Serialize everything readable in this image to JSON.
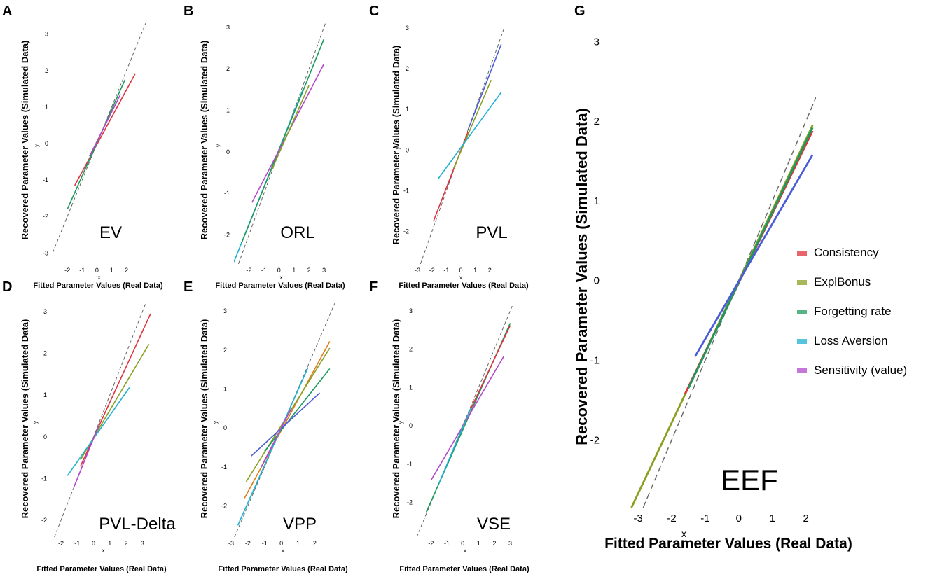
{
  "colors": {
    "Consistency": "#e0323c",
    "ExplBonus": "#88a020",
    "Forgetting rate": "#1c9a5e",
    "Loss Aversion": "#1fb0d2",
    "Sensitivity (value)": "#b248cc",
    "Extra blue": "#4a5cd8",
    "Extra orange": "#e07a18",
    "identity": "#666666"
  },
  "legend": {
    "items": [
      {
        "label": "Consistency",
        "color": "#e0323c"
      },
      {
        "label": "ExplBonus",
        "color": "#88a020"
      },
      {
        "label": "Forgetting rate",
        "color": "#1c9a5e"
      },
      {
        "label": "Loss Aversion",
        "color": "#1fb0d2"
      },
      {
        "label": "Sensitivity (value)",
        "color": "#b248cc"
      }
    ]
  },
  "chart_data": [
    {
      "panel": "A",
      "model": "EV",
      "type": "line",
      "xlabel": "Fitted Parameter Values (Real Data)",
      "ylabel": "Recovered Parameter Values (Simulated Data)",
      "xvar": "x",
      "yvar": "y",
      "xlim": [
        -3,
        3.3
      ],
      "ylim": [
        -3.3,
        3.3
      ],
      "xticks": [
        -2,
        -1,
        0,
        1,
        2
      ],
      "xtick_labels": [
        "-2",
        "-1",
        "0",
        "1",
        "2"
      ],
      "yticks": [
        -3,
        -2,
        -1,
        0,
        1,
        2,
        3
      ],
      "ytick_labels": [
        "-3",
        "-2",
        "-1",
        "0",
        "1",
        "2",
        "3"
      ],
      "identity_line": true,
      "series": [
        {
          "name": "Consistency",
          "color": "#e0323c",
          "x": [
            -1.5,
            2.6
          ],
          "y": [
            -1.15,
            1.92
          ]
        },
        {
          "name": "Forgetting rate",
          "color": "#1c9a5e",
          "x": [
            -2.0,
            1.9
          ],
          "y": [
            -1.8,
            1.75
          ]
        },
        {
          "name": "Sensitivity (value)",
          "color": "#b248cc",
          "x": [
            -0.5,
            1.6
          ],
          "y": [
            -0.35,
            1.35
          ]
        }
      ]
    },
    {
      "panel": "B",
      "model": "ORL",
      "type": "line",
      "xlabel": "Fitted Parameter Values (Real Data)",
      "ylabel": "Recovered Parameter Values (Simulated Data)",
      "xvar": "x",
      "yvar": "y",
      "xlim": [
        -3,
        3.3
      ],
      "ylim": [
        -2.7,
        3.1
      ],
      "xticks": [
        -2,
        -1,
        0,
        1,
        2,
        3
      ],
      "xtick_labels": [
        "-2",
        "-1",
        "0",
        "1",
        "2",
        "3"
      ],
      "yticks": [
        -2,
        -1,
        0,
        1,
        2,
        3
      ],
      "ytick_labels": [
        "-2",
        "-1",
        "0",
        "1",
        "2",
        "3"
      ],
      "identity_line": true,
      "series": [
        {
          "name": "Loss Aversion",
          "color": "#1fb0d2",
          "x": [
            -3.0,
            1.6
          ],
          "y": [
            -2.65,
            1.5
          ]
        },
        {
          "name": "Forgetting rate",
          "color": "#1c9a5e",
          "x": [
            -2.5,
            3.0
          ],
          "y": [
            -2.2,
            2.72
          ]
        },
        {
          "name": "Sensitivity (value)",
          "color": "#b248cc",
          "x": [
            -1.8,
            3.0
          ],
          "y": [
            -1.22,
            2.12
          ]
        },
        {
          "name": "ExplBonus",
          "color": "#88a020",
          "x": [
            -0.5,
            2.0
          ],
          "y": [
            -0.45,
            1.6
          ]
        }
      ]
    },
    {
      "panel": "C",
      "model": "PVL",
      "type": "line",
      "xlabel": "Fitted Parameter Values (Real Data)",
      "ylabel": "Recovered Parameter Values (Simulated Data)",
      "xvar": "x",
      "yvar": "y",
      "xlim": [
        -3.3,
        3.3
      ],
      "ylim": [
        -2.8,
        3.0
      ],
      "xticks": [
        -3,
        -2,
        -1,
        0,
        1,
        2
      ],
      "xtick_labels": [
        "-3",
        "-2",
        "-1",
        "0",
        "1",
        "2"
      ],
      "yticks": [
        -2,
        -1,
        0,
        1,
        2,
        3
      ],
      "ytick_labels": [
        "-2",
        "-1",
        "0",
        "1",
        "2",
        "3"
      ],
      "identity_line": true,
      "series": [
        {
          "name": "Consistency",
          "color": "#e0323c",
          "x": [
            -1.9,
            0.5
          ],
          "y": [
            -1.75,
            0.45
          ]
        },
        {
          "name": "ExplBonus",
          "color": "#88a020",
          "x": [
            -0.5,
            2.1
          ],
          "y": [
            -0.45,
            1.72
          ]
        },
        {
          "name": "Loss Aversion",
          "color": "#1fb0d2",
          "x": [
            -1.6,
            2.8
          ],
          "y": [
            -0.72,
            1.42
          ]
        },
        {
          "name": "Extra blue",
          "color": "#4a5cd8",
          "x": [
            0.5,
            2.8
          ],
          "y": [
            0.5,
            2.6
          ]
        }
      ]
    },
    {
      "panel": "D",
      "model": "PVL-Delta",
      "type": "line",
      "xlabel": "Fitted Parameter Values (Real Data)",
      "ylabel": "Recovered Parameter Values (Simulated Data)",
      "xvar": "x",
      "yvar": "y",
      "xlim": [
        -2.6,
        3.8
      ],
      "ylim": [
        -2.4,
        3.2
      ],
      "xticks": [
        -2,
        -1,
        0,
        1,
        2,
        3
      ],
      "xtick_labels": [
        "-2",
        "-1",
        "0",
        "1",
        "2",
        "3"
      ],
      "yticks": [
        -2,
        -1,
        0,
        1,
        2,
        3
      ],
      "ytick_labels": [
        "-2",
        "-1",
        "0",
        "1",
        "2",
        "3"
      ],
      "identity_line": true,
      "series": [
        {
          "name": "Consistency",
          "color": "#e0323c",
          "x": [
            -0.8,
            3.5
          ],
          "y": [
            -0.7,
            2.95
          ]
        },
        {
          "name": "ExplBonus",
          "color": "#88a020",
          "x": [
            -0.8,
            3.4
          ],
          "y": [
            -0.55,
            2.22
          ]
        },
        {
          "name": "Loss Aversion",
          "color": "#1fb0d2",
          "x": [
            -1.6,
            2.2
          ],
          "y": [
            -0.93,
            1.18
          ]
        },
        {
          "name": "Sensitivity (value)",
          "color": "#b248cc",
          "x": [
            -1.2,
            0.3
          ],
          "y": [
            -1.2,
            0.25
          ]
        }
      ]
    },
    {
      "panel": "E",
      "model": "VPP",
      "type": "line",
      "xlabel": "Fitted Parameter Values (Real Data)",
      "ylabel": "Recovered Parameter Values (Simulated Data)",
      "xvar": "x",
      "yvar": "y",
      "xlim": [
        -3,
        3.2
      ],
      "ylim": [
        -2.8,
        3.2
      ],
      "xticks": [
        -3,
        -2,
        -1,
        0,
        1,
        2
      ],
      "xtick_labels": [
        "-3",
        "-2",
        "-1",
        "0",
        "1",
        "2"
      ],
      "yticks": [
        -2,
        -1,
        0,
        1,
        2,
        3
      ],
      "ytick_labels": [
        "-2",
        "-1",
        "0",
        "1",
        "2",
        "3"
      ],
      "identity_line": true,
      "series": [
        {
          "name": "Extra orange",
          "color": "#e07a18",
          "x": [
            -2.2,
            2.9
          ],
          "y": [
            -1.8,
            2.22
          ]
        },
        {
          "name": "ExplBonus",
          "color": "#88a020",
          "x": [
            -2.1,
            2.9
          ],
          "y": [
            -1.38,
            2.05
          ]
        },
        {
          "name": "Forgetting rate",
          "color": "#1c9a5e",
          "x": [
            -1.0,
            2.9
          ],
          "y": [
            -0.6,
            1.52
          ]
        },
        {
          "name": "Extra blue",
          "color": "#4a5cd8",
          "x": [
            -1.8,
            2.3
          ],
          "y": [
            -0.72,
            0.9
          ]
        },
        {
          "name": "Loss Aversion",
          "color": "#1fb0d2",
          "x": [
            -2.6,
            1.6
          ],
          "y": [
            -2.5,
            1.55
          ]
        },
        {
          "name": "Sensitivity (value)",
          "color": "#b248cc",
          "x": [
            -1.2,
            0.6
          ],
          "y": [
            -1.0,
            0.5
          ]
        }
      ]
    },
    {
      "panel": "F",
      "model": "VSE",
      "type": "line",
      "xlabel": "Fitted Parameter Values (Real Data)",
      "ylabel": "Recovered Parameter Values (Simulated Data)",
      "xvar": "x",
      "yvar": "y",
      "xlim": [
        -2.9,
        3.2
      ],
      "ylim": [
        -2.9,
        3.2
      ],
      "xticks": [
        -2,
        -1,
        0,
        1,
        2,
        3
      ],
      "xtick_labels": [
        "-2",
        "-1",
        "0",
        "1",
        "2",
        "3"
      ],
      "yticks": [
        -2,
        -1,
        0,
        1,
        2,
        3
      ],
      "ytick_labels": [
        "-2",
        "-1",
        "0",
        "1",
        "2",
        "3"
      ],
      "identity_line": true,
      "series": [
        {
          "name": "Forgetting rate",
          "color": "#1c9a5e",
          "x": [
            -2.3,
            3.0
          ],
          "y": [
            -2.25,
            2.68
          ]
        },
        {
          "name": "Consistency",
          "color": "#e0323c",
          "x": [
            0.0,
            3.0
          ],
          "y": [
            0.0,
            2.62
          ]
        },
        {
          "name": "Sensitivity (value)",
          "color": "#b248cc",
          "x": [
            -2.0,
            2.6
          ],
          "y": [
            -1.42,
            1.82
          ]
        },
        {
          "name": "Loss Aversion",
          "color": "#1fb0d2",
          "x": [
            -1.5,
            0.5
          ],
          "y": [
            -1.5,
            0.45
          ]
        }
      ]
    },
    {
      "panel": "G",
      "model": "EEF",
      "type": "line",
      "xlabel": "Fitted Parameter Values (Real Data)",
      "ylabel": "Recovered Parameter Values (Simulated Data)",
      "xvar": "x",
      "yvar": "y",
      "xlim": [
        -3.9,
        2.3
      ],
      "ylim": [
        -2.85,
        3.1
      ],
      "xticks": [
        -3,
        -2,
        -1,
        0,
        1,
        2
      ],
      "xtick_labels": [
        "-3",
        "-2",
        "-1",
        "0",
        "1",
        "2"
      ],
      "yticks": [
        -2,
        -1,
        0,
        1,
        2,
        3
      ],
      "ytick_labels": [
        "-2",
        "-1",
        "0",
        "1",
        "2",
        "3"
      ],
      "identity_line": true,
      "series": [
        {
          "name": "ExplBonus",
          "color": "#88a020",
          "x": [
            -3.2,
            2.2
          ],
          "y": [
            -2.85,
            1.95
          ]
        },
        {
          "name": "Consistency",
          "color": "#e0323c",
          "x": [
            -1.6,
            2.2
          ],
          "y": [
            -1.42,
            1.88
          ]
        },
        {
          "name": "Forgetting rate",
          "color": "#1c9a5e",
          "x": [
            -1.5,
            2.2
          ],
          "y": [
            -1.35,
            1.92
          ]
        },
        {
          "name": "Extra blue",
          "color": "#4a5cd8",
          "x": [
            -1.3,
            2.2
          ],
          "y": [
            -0.95,
            1.58
          ]
        }
      ]
    }
  ]
}
